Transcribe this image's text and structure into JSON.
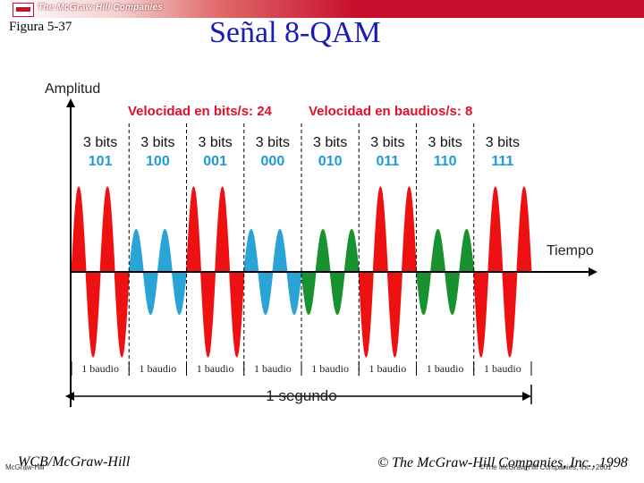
{
  "header": {
    "brand": "The McGraw·Hill Companies"
  },
  "figure_label": "Figura 5-37",
  "title": "Señal 8-QAM",
  "diagram": {
    "y_axis_label": "Amplitud",
    "x_axis_label": "Tiempo",
    "bit_rate_text": "Velocidad en bits/s: 24",
    "baud_rate_text": "Velocidad en baudios/s: 8",
    "duration_label": "1 segundo",
    "colors": {
      "red": "#ee1111",
      "blue": "#2aa4d6",
      "green": "#18922e",
      "label_red": "#e0102a",
      "code_blue": "#1e9bd7"
    },
    "baud_count": 8,
    "cycles_per_baud": 2,
    "segments": [
      {
        "bits_label": "3 bits",
        "code": "101",
        "baud_label": "1 baudio",
        "color": "red",
        "amplitude": 1.0,
        "phase_inverted": false
      },
      {
        "bits_label": "3 bits",
        "code": "100",
        "baud_label": "1 baudio",
        "color": "blue",
        "amplitude": 0.5,
        "phase_inverted": false
      },
      {
        "bits_label": "3 bits",
        "code": "001",
        "baud_label": "1 baudio",
        "color": "red",
        "amplitude": 1.0,
        "phase_inverted": false
      },
      {
        "bits_label": "3 bits",
        "code": "000",
        "baud_label": "1 baudio",
        "color": "blue",
        "amplitude": 0.5,
        "phase_inverted": false
      },
      {
        "bits_label": "3 bits",
        "code": "010",
        "baud_label": "1 baudio",
        "color": "green",
        "amplitude": 0.5,
        "phase_inverted": true
      },
      {
        "bits_label": "3 bits",
        "code": "011",
        "baud_label": "1 baudio",
        "color": "red",
        "amplitude": 1.0,
        "phase_inverted": true
      },
      {
        "bits_label": "3 bits",
        "code": "110",
        "baud_label": "1 baudio",
        "color": "green",
        "amplitude": 0.5,
        "phase_inverted": true
      },
      {
        "bits_label": "3 bits",
        "code": "111",
        "baud_label": "1 baudio",
        "color": "red",
        "amplitude": 1.0,
        "phase_inverted": true
      }
    ]
  },
  "footer": {
    "left": "WCB/McGraw-Hill",
    "left_small": "McGraw-Hill",
    "right": "© The McGraw-Hill Companies, Inc., 1998",
    "right_small": "©The McGraw-Hill Companies, Inc., 2001"
  }
}
